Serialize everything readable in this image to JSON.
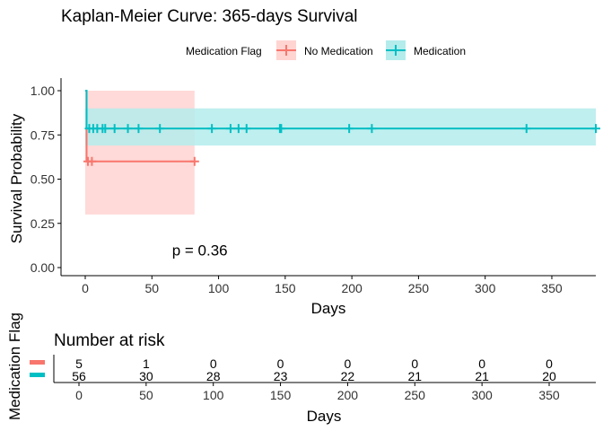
{
  "chart_data": [
    {
      "type": "line",
      "subtype": "kaplan-meier",
      "title": "Kaplan-Meier Curve: 365-days Survival",
      "xlabel": "Days",
      "ylabel": "Survival Probability",
      "xlim": [
        0,
        383
      ],
      "ylim": [
        0,
        1
      ],
      "x_ticks": [
        "0",
        "50",
        "100",
        "150",
        "200",
        "250",
        "300",
        "350"
      ],
      "x_tick_values": [
        0,
        50,
        100,
        150,
        200,
        250,
        300,
        350
      ],
      "y_ticks": [
        "0.00",
        "0.25",
        "0.50",
        "0.75",
        "1.00"
      ],
      "y_tick_values": [
        0,
        0.25,
        0.5,
        0.75,
        1.0
      ],
      "legend": {
        "title": "Medication Flag",
        "position": "top",
        "entries": [
          "No Medication",
          "Medication"
        ]
      },
      "annotation": "p = 0.36",
      "annotation_x": 55,
      "annotation_y": 0.1,
      "series": [
        {
          "name": "No Medication",
          "color": "#f8766d",
          "fill": "#ffd4d1",
          "steps": [
            [
              0,
              1.0
            ],
            [
              1,
              0.6
            ],
            [
              82,
              0.6
            ]
          ],
          "ci": [
            [
              0,
              0.3,
              1.0
            ],
            [
              82,
              0.3,
              1.0
            ]
          ],
          "censor_x": [
            2,
            5,
            82
          ],
          "censor_y": 0.6
        },
        {
          "name": "Medication",
          "color": "#00bfc4",
          "fill": "#b4ecec",
          "steps": [
            [
              0,
              1.0
            ],
            [
              1,
              0.786
            ],
            [
              383,
              0.786
            ]
          ],
          "ci": [
            [
              0,
              0.69,
              0.9
            ],
            [
              383,
              0.69,
              0.9
            ]
          ],
          "censor_x": [
            3,
            6,
            9,
            13,
            15,
            22,
            32,
            40,
            56,
            95,
            109,
            115,
            121,
            146,
            147,
            198,
            215,
            331,
            383
          ],
          "censor_y": 0.786
        }
      ]
    },
    {
      "type": "table",
      "title": "Number at risk",
      "xlabel": "Days",
      "ylabel": "Medication Flag",
      "x_ticks": [
        "0",
        "50",
        "100",
        "150",
        "200",
        "250",
        "300",
        "350"
      ],
      "x_tick_values": [
        0,
        50,
        100,
        150,
        200,
        250,
        300,
        350
      ],
      "rows": [
        {
          "name": "No Medication",
          "color": "#f8766d",
          "values": [
            "5",
            "1",
            "0",
            "0",
            "0",
            "0",
            "0",
            "0"
          ]
        },
        {
          "name": "Medication",
          "color": "#00bfc4",
          "values": [
            "56",
            "30",
            "28",
            "23",
            "22",
            "21",
            "21",
            "20"
          ]
        }
      ]
    }
  ]
}
